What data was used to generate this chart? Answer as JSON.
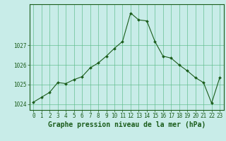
{
  "x": [
    0,
    1,
    2,
    3,
    4,
    5,
    6,
    7,
    8,
    9,
    10,
    11,
    12,
    13,
    14,
    15,
    16,
    17,
    18,
    19,
    20,
    21,
    22,
    23
  ],
  "y": [
    1024.1,
    1024.35,
    1024.6,
    1025.1,
    1025.05,
    1025.25,
    1025.4,
    1025.85,
    1026.1,
    1026.45,
    1026.85,
    1027.2,
    1028.65,
    1028.3,
    1028.25,
    1027.2,
    1026.45,
    1026.35,
    1026.0,
    1025.7,
    1025.35,
    1025.1,
    1024.05,
    1025.35
  ],
  "line_color": "#1a5c1a",
  "marker_color": "#1a5c1a",
  "bg_color": "#c8ece8",
  "grid_color": "#5dbb8a",
  "xlabel": "Graphe pression niveau de la mer (hPa)",
  "xlabel_color": "#1a5c1a",
  "tick_color": "#1a5c1a",
  "ylim": [
    1023.7,
    1029.1
  ],
  "yticks": [
    1024,
    1025,
    1026,
    1027
  ],
  "xticks": [
    0,
    1,
    2,
    3,
    4,
    5,
    6,
    7,
    8,
    9,
    10,
    11,
    12,
    13,
    14,
    15,
    16,
    17,
    18,
    19,
    20,
    21,
    22,
    23
  ],
  "tick_fontsize": 5.5,
  "xlabel_fontsize": 7.0,
  "fig_width": 3.2,
  "fig_height": 2.0,
  "dpi": 100
}
